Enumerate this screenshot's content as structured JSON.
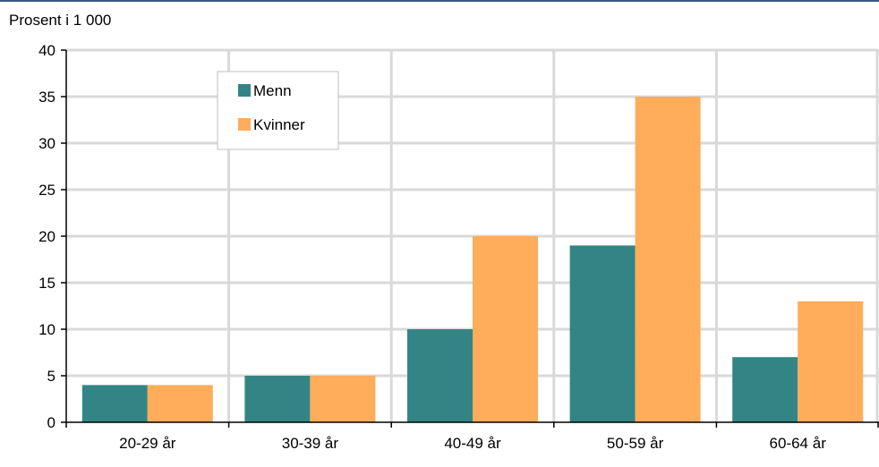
{
  "chart_data": {
    "type": "bar",
    "title": "",
    "xlabel": "",
    "ylabel": "Prosent i 1 000",
    "categories": [
      "20-29 år",
      "30-39 år",
      "40-49 år",
      "50-59 år",
      "60-64 år"
    ],
    "series": [
      {
        "name": "Menn",
        "values": [
          4,
          5,
          10,
          19,
          7
        ],
        "color": "#338585"
      },
      {
        "name": "Kvinner",
        "values": [
          4,
          5,
          20,
          35,
          13
        ],
        "color": "#ffac5b"
      }
    ],
    "ylim": [
      0,
      40
    ],
    "yticks": [
      0,
      5,
      10,
      15,
      20,
      25,
      30,
      35,
      40
    ],
    "grid": true,
    "legend_position": "top-left-inside",
    "grid_color": "#d9d9d9",
    "axis_color": "#000000"
  }
}
